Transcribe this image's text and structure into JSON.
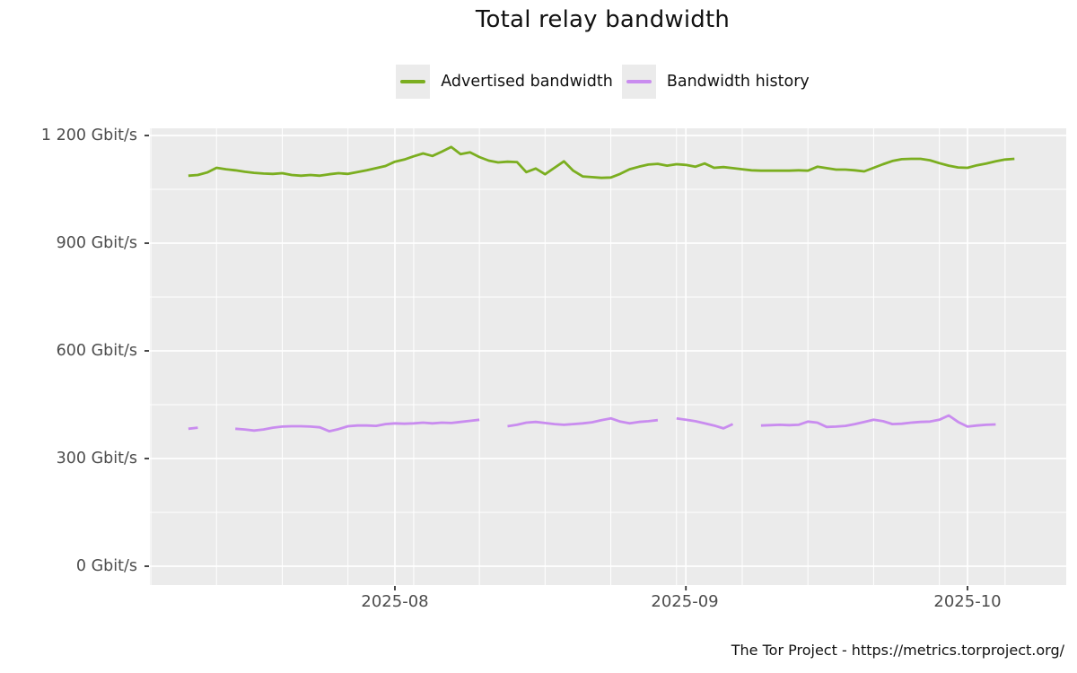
{
  "footer": {
    "text": "The Tor Project - https://metrics.torproject.org/"
  },
  "chart_data": {
    "type": "line",
    "title": "Total relay bandwidth",
    "unit": "Gbit/s",
    "background": "#EBEBEB",
    "grid_color": "#FFFFFF",
    "axis_text_color": "#4D4D4D",
    "legend_position": "top-center",
    "y_axis": {
      "ticks": [
        {
          "value": 1200,
          "label": "1 200 Gbit/s"
        },
        {
          "value": 900,
          "label": "900 Gbit/s"
        },
        {
          "value": 600,
          "label": "600 Gbit/s"
        },
        {
          "value": 300,
          "label": "300 Gbit/s"
        },
        {
          "value": 0,
          "label": "0 Gbit/s"
        }
      ],
      "minor_values": [
        150,
        450,
        750,
        1050
      ],
      "range": [
        0,
        1220
      ]
    },
    "x_axis": {
      "ticks": [
        {
          "date": "2025-08-01",
          "label": "2025-08"
        },
        {
          "date": "2025-09-01",
          "label": "2025-09"
        },
        {
          "date": "2025-10-01",
          "label": "2025-10"
        }
      ],
      "minor_dates": [
        "2025-07-06",
        "2025-07-13",
        "2025-07-20",
        "2025-07-27",
        "2025-08-03",
        "2025-08-10",
        "2025-08-17",
        "2025-08-24",
        "2025-08-31",
        "2025-09-07",
        "2025-09-14",
        "2025-09-21",
        "2025-09-28",
        "2025-10-05"
      ],
      "range": [
        "2025-07-05",
        "2025-10-12"
      ]
    },
    "series": [
      {
        "name": "Advertised bandwidth",
        "color": "#7BAE20",
        "start": "2025-07-10",
        "values": [
          1088,
          1090,
          1097,
          1110,
          1106,
          1103,
          1099,
          1096,
          1094,
          1093,
          1095,
          1090,
          1088,
          1090,
          1088,
          1092,
          1095,
          1093,
          1098,
          1103,
          1109,
          1115,
          1127,
          1133,
          1142,
          1150,
          1143,
          1155,
          1168,
          1148,
          1153,
          1140,
          1130,
          1125,
          1127,
          1126,
          1098,
          1108,
          1092,
          1110,
          1128,
          1102,
          1086,
          1084,
          1082,
          1083,
          1093,
          1106,
          1113,
          1119,
          1121,
          1116,
          1120,
          1118,
          1113,
          1122,
          1110,
          1112,
          1109,
          1106,
          1103,
          1102,
          1102,
          1102,
          1102,
          1103,
          1102,
          1113,
          1109,
          1105,
          1105,
          1103,
          1100,
          1110,
          1120,
          1129,
          1134,
          1135,
          1135,
          1131,
          1123,
          1116,
          1111,
          1110,
          1117,
          1122,
          1128,
          1133,
          1135
        ]
      },
      {
        "name": "Bandwidth history",
        "color": "#C98CEF",
        "start": "2025-07-10",
        "values": [
          383,
          386,
          null,
          null,
          null,
          383,
          381,
          378,
          381,
          386,
          389,
          390,
          390,
          389,
          387,
          376,
          382,
          390,
          392,
          392,
          391,
          396,
          398,
          397,
          398,
          400,
          398,
          400,
          399,
          402,
          405,
          408,
          null,
          null,
          390,
          394,
          400,
          402,
          399,
          396,
          394,
          396,
          398,
          401,
          407,
          412,
          403,
          398,
          402,
          404,
          407,
          null,
          412,
          408,
          404,
          398,
          392,
          384,
          396,
          null,
          null,
          392,
          393,
          394,
          393,
          394,
          403,
          400,
          388,
          389,
          391,
          396,
          402,
          408,
          404,
          396,
          397,
          400,
          402,
          403,
          408,
          420,
          402,
          389,
          392,
          394,
          395,
          null,
          null
        ]
      }
    ]
  }
}
